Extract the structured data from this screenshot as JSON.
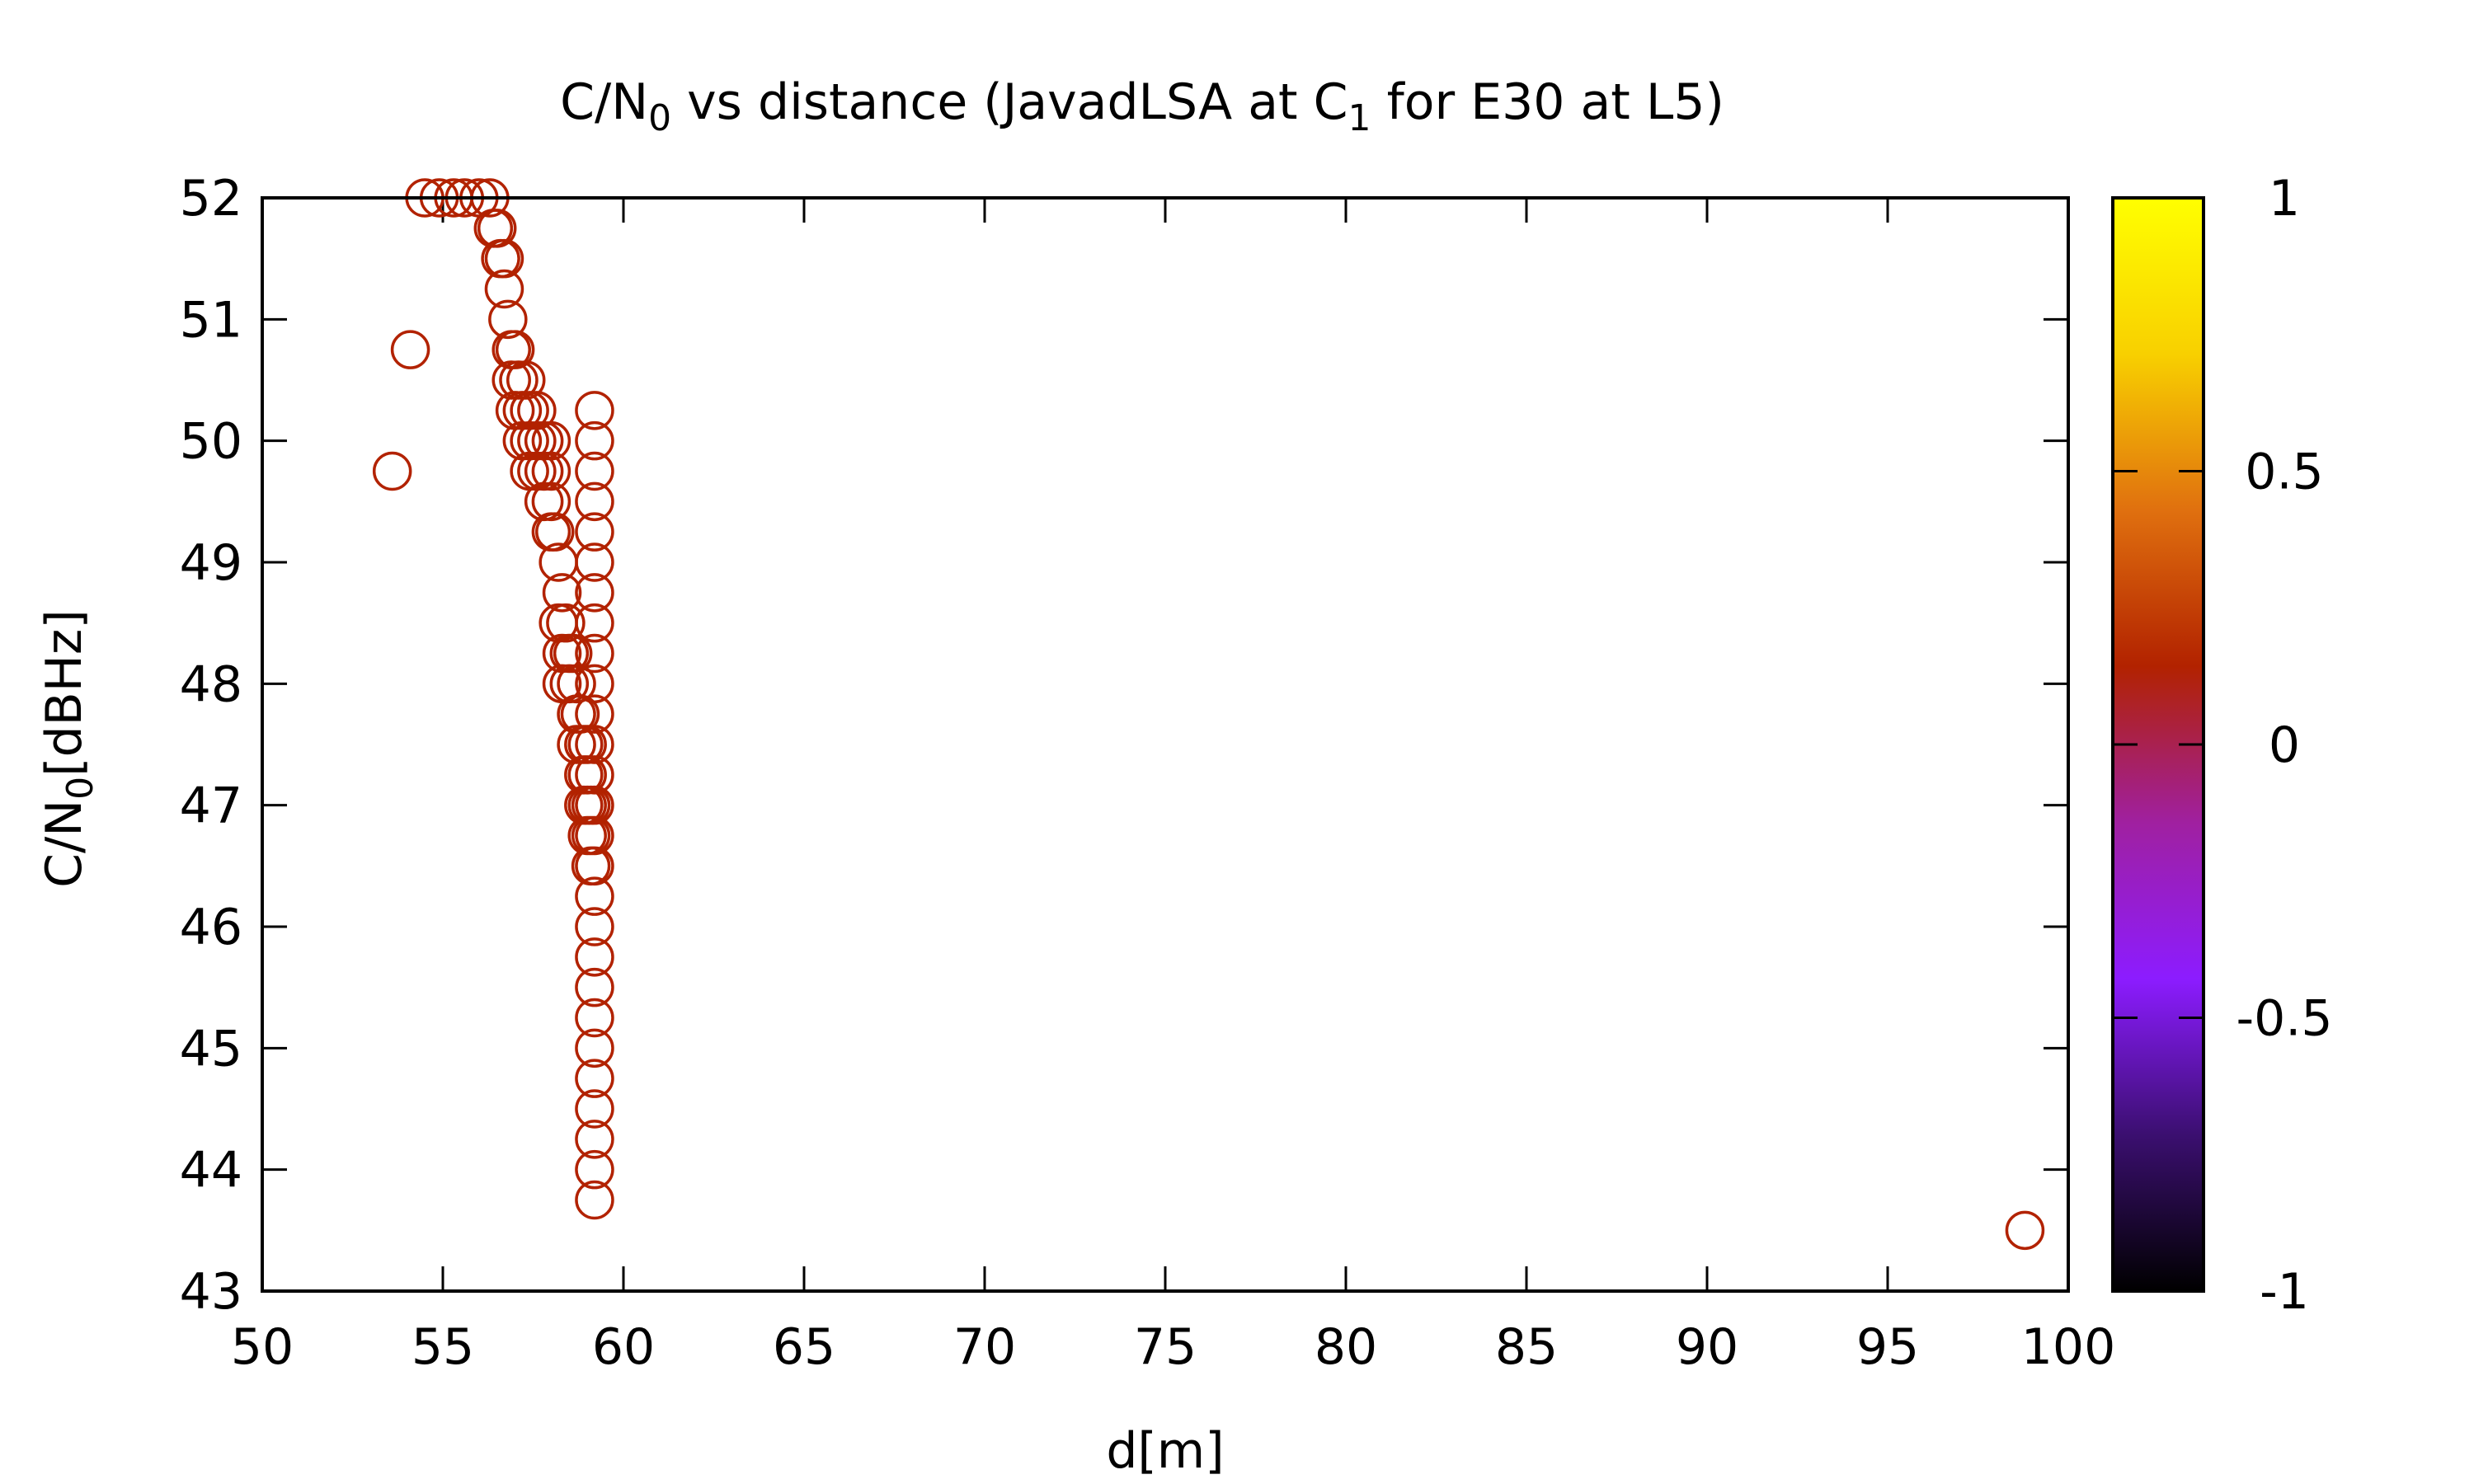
{
  "chart_data": {
    "type": "scatter",
    "title": {
      "prefix": "C/N",
      "sub1": "0",
      "middle": " vs distance (JavadLSA at C",
      "sub2": "1",
      "suffix": " for E30 at L5)"
    },
    "xlabel": "d[m]",
    "ylabel": {
      "base": "C/N",
      "sub": "0",
      "rest": "[dBHz]"
    },
    "xlim": [
      50,
      100
    ],
    "ylim": [
      43,
      52
    ],
    "xticks": [
      "50",
      "55",
      "60",
      "65",
      "70",
      "75",
      "80",
      "85",
      "90",
      "95",
      "100"
    ],
    "yticks": [
      "43",
      "44",
      "45",
      "46",
      "47",
      "48",
      "49",
      "50",
      "51",
      "52"
    ],
    "grid": false,
    "marker": "open-circle",
    "point_color": "#b22200",
    "colorbar": {
      "range": [
        -1,
        1
      ],
      "ticks": [
        "1",
        "0.5",
        "0",
        "-0.5",
        "-1"
      ],
      "colors": [
        "#000000",
        "#3b0f70",
        "#8c1cff",
        "#a020a0",
        "#b22200",
        "#e0700f",
        "#f8d000",
        "#ffff00"
      ]
    },
    "series": [
      {
        "points": [
          [
            53.6,
            49.75
          ],
          [
            54.1,
            50.75
          ],
          [
            54.5,
            52.0
          ],
          [
            54.9,
            52.0
          ],
          [
            55.3,
            52.0
          ],
          [
            55.6,
            52.0
          ],
          [
            56.0,
            52.0
          ],
          [
            56.3,
            52.0
          ],
          [
            56.4,
            51.75
          ],
          [
            56.5,
            51.75
          ],
          [
            56.6,
            51.5
          ],
          [
            56.7,
            51.5
          ],
          [
            56.7,
            51.25
          ],
          [
            56.8,
            51.0
          ],
          [
            56.9,
            50.75
          ],
          [
            57.0,
            50.75
          ],
          [
            56.9,
            50.5
          ],
          [
            57.1,
            50.5
          ],
          [
            57.3,
            50.5
          ],
          [
            57.0,
            50.25
          ],
          [
            57.2,
            50.25
          ],
          [
            57.4,
            50.25
          ],
          [
            57.6,
            50.25
          ],
          [
            57.2,
            50.0
          ],
          [
            57.4,
            50.0
          ],
          [
            57.6,
            50.0
          ],
          [
            57.8,
            50.0
          ],
          [
            58.0,
            50.0
          ],
          [
            57.4,
            49.75
          ],
          [
            57.6,
            49.75
          ],
          [
            57.8,
            49.75
          ],
          [
            58.0,
            49.75
          ],
          [
            57.8,
            49.5
          ],
          [
            58.0,
            49.5
          ],
          [
            58.0,
            49.25
          ],
          [
            58.1,
            49.25
          ],
          [
            58.2,
            49.0
          ],
          [
            58.3,
            48.75
          ],
          [
            58.2,
            48.5
          ],
          [
            58.4,
            48.5
          ],
          [
            58.3,
            48.25
          ],
          [
            58.5,
            48.25
          ],
          [
            58.6,
            48.25
          ],
          [
            58.3,
            48.0
          ],
          [
            58.5,
            48.0
          ],
          [
            58.7,
            48.0
          ],
          [
            58.7,
            47.75
          ],
          [
            58.8,
            47.75
          ],
          [
            58.7,
            47.5
          ],
          [
            58.9,
            47.5
          ],
          [
            59.0,
            47.5
          ],
          [
            58.9,
            47.25
          ],
          [
            59.0,
            47.25
          ],
          [
            58.9,
            47.0
          ],
          [
            59.0,
            47.0
          ],
          [
            59.1,
            47.0
          ],
          [
            59.0,
            46.75
          ],
          [
            59.1,
            46.75
          ],
          [
            59.2,
            46.75
          ],
          [
            59.1,
            46.5
          ],
          [
            59.2,
            46.5
          ],
          [
            59.2,
            50.25
          ],
          [
            59.2,
            50.0
          ],
          [
            59.2,
            49.75
          ],
          [
            59.2,
            49.5
          ],
          [
            59.2,
            49.25
          ],
          [
            59.2,
            49.0
          ],
          [
            59.2,
            48.75
          ],
          [
            59.2,
            48.5
          ],
          [
            59.2,
            48.25
          ],
          [
            59.2,
            48.0
          ],
          [
            59.2,
            47.75
          ],
          [
            59.2,
            47.5
          ],
          [
            59.2,
            47.25
          ],
          [
            59.2,
            47.0
          ],
          [
            59.2,
            46.25
          ],
          [
            59.2,
            46.0
          ],
          [
            59.2,
            45.75
          ],
          [
            59.2,
            45.5
          ],
          [
            59.2,
            45.25
          ],
          [
            59.2,
            45.0
          ],
          [
            59.2,
            44.75
          ],
          [
            59.2,
            44.5
          ],
          [
            59.2,
            44.25
          ],
          [
            59.2,
            44.0
          ],
          [
            59.2,
            43.75
          ],
          [
            98.8,
            43.5
          ]
        ]
      }
    ]
  }
}
